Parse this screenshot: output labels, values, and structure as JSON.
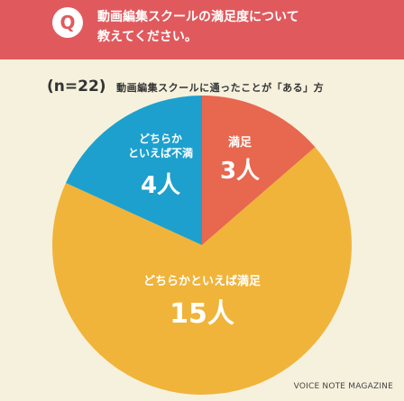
{
  "header": {
    "badge": "Q",
    "question_line1": "動画編集スクールの満足度について",
    "question_line2": "教えてください。"
  },
  "subtitle": {
    "n_label": "(n=22)",
    "text": "動画編集スクールに通ったことが「ある」方"
  },
  "credit": "VOICE NOTE MAGAZINE",
  "colors": {
    "header": "#e05a5d",
    "background": "#f6f1dd",
    "satisfied": "#e8674f",
    "somewhat_satisfied": "#f0b43a",
    "somewhat_dissatisfied": "#1da0ce"
  },
  "chart_data": {
    "type": "pie",
    "title": "動画編集スクールに通ったことが「ある」方",
    "n": 22,
    "unit": "人",
    "slices": [
      {
        "label": "満足",
        "value": 3,
        "value_label": "3人",
        "color": "#e8674f"
      },
      {
        "label": "どちらかといえば満足",
        "value": 15,
        "value_label": "15人",
        "color": "#f0b43a"
      },
      {
        "label": "どちらかといえば不満",
        "value": 4,
        "value_label": "4人",
        "color": "#1da0ce"
      }
    ]
  }
}
